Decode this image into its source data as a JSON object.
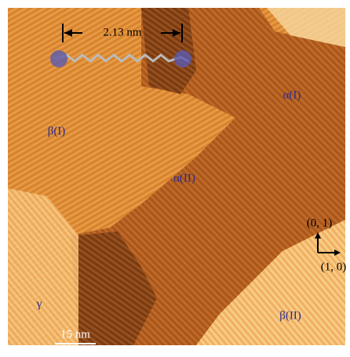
{
  "annotations": {
    "molecule_length": "2.13 nm",
    "domains": {
      "alpha_1": "α(I)",
      "beta_1": "β(I)",
      "alpha_2": "α(II)",
      "gamma": "γ",
      "beta_2": "β(II)"
    },
    "axes": {
      "y": "(0, 1)",
      "x": "(1, 0)"
    },
    "scale_bar": "15 nm"
  }
}
